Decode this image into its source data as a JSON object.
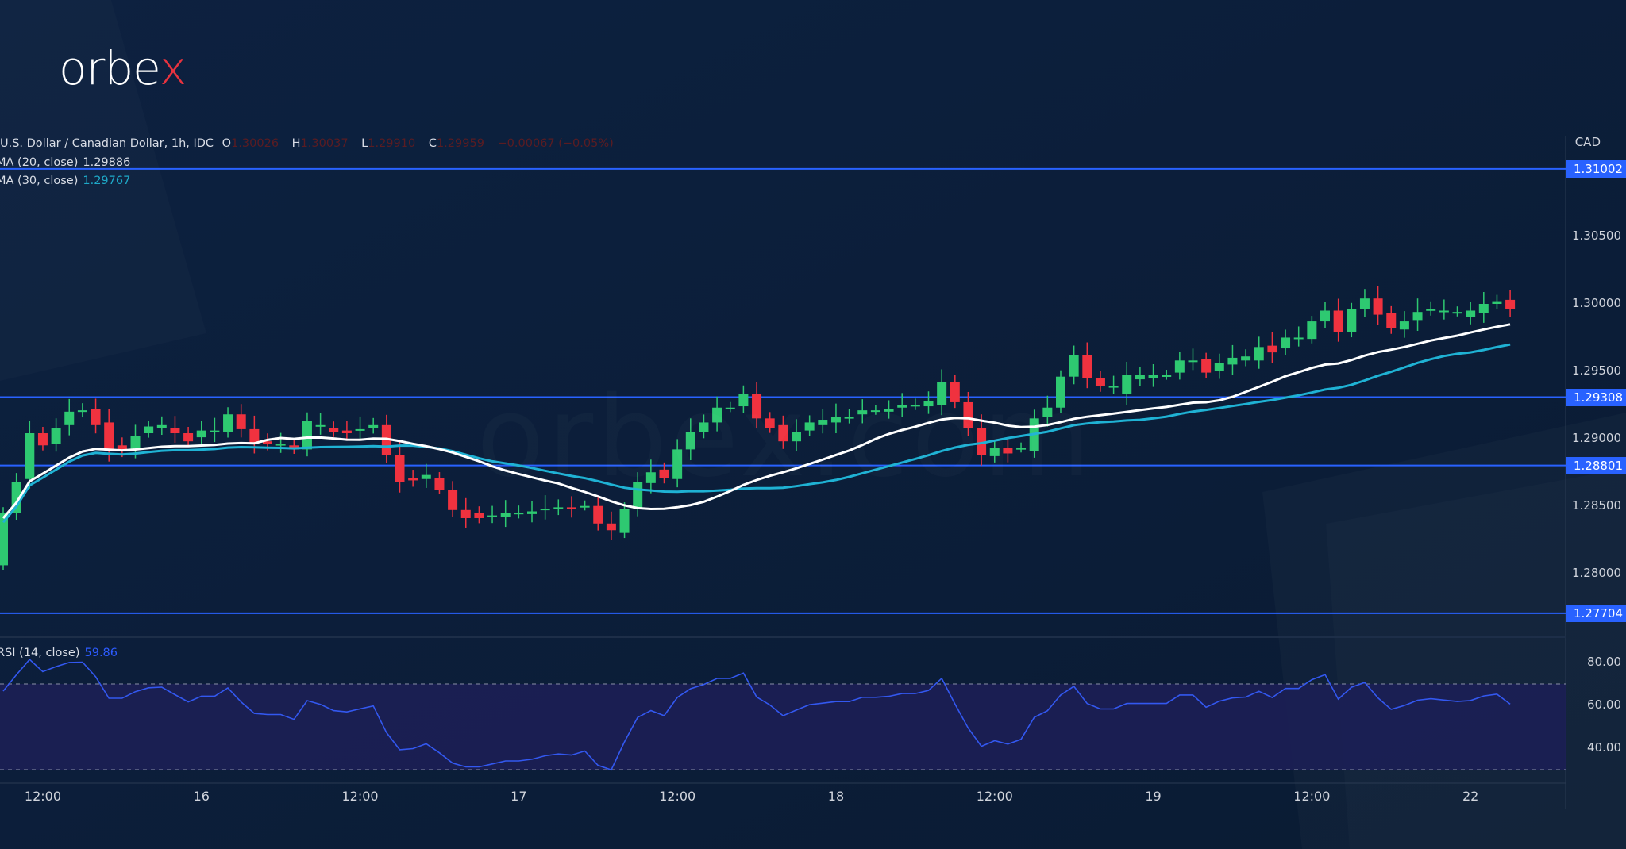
{
  "logo": "orbex",
  "watermark": "orbex.com",
  "legend": {
    "symbol": "U.S. Dollar / Canadian Dollar, 1h, IDC",
    "o_label": "O",
    "o": "1.30026",
    "h_label": "H",
    "h": "1.30037",
    "l_label": "L",
    "l": "1.29910",
    "c_label": "C",
    "c": "1.29959",
    "change": "−0.00067 (−0.05%)",
    "ma20_label": "MA (20, close)",
    "ma20": "1.29886",
    "ma30_label": "MA (30, close)",
    "ma30": "1.29767",
    "rsi_label": "RSI (14, close)",
    "rsi": "59.86"
  },
  "colors": {
    "up": "#2ec971",
    "down": "#f0323f",
    "ma20": "#ffffff",
    "ma30": "#1fb2d4",
    "level": "#2962ff",
    "rsi": "#3358f0"
  },
  "chart_data": {
    "type": "candlestick",
    "title": "U.S. Dollar / Canadian Dollar, 1h, IDC",
    "currency_label": "CAD",
    "y_ticks": [
      "1.30500",
      "1.30000",
      "1.29500",
      "1.29000",
      "1.28500",
      "1.28000"
    ],
    "ylim": [
      1.276,
      1.312
    ],
    "levels": [
      "1.31002",
      "1.29308",
      "1.28801",
      "1.27704"
    ],
    "x_ticks": [
      {
        "label": "12:00",
        "hour": 3
      },
      {
        "label": "16",
        "hour": 15
      },
      {
        "label": "12:00",
        "hour": 27
      },
      {
        "label": "17",
        "hour": 39
      },
      {
        "label": "12:00",
        "hour": 51
      },
      {
        "label": "18",
        "hour": 63
      },
      {
        "label": "12:00",
        "hour": 75
      },
      {
        "label": "19",
        "hour": 87
      },
      {
        "label": "12:00",
        "hour": 99
      },
      {
        "label": "22",
        "hour": 111
      }
    ],
    "candles_oc": [
      [
        1.2806,
        1.2845
      ],
      [
        1.2845,
        1.2868
      ],
      [
        1.287,
        1.2904
      ],
      [
        1.2904,
        1.2895
      ],
      [
        1.2896,
        1.2908
      ],
      [
        1.291,
        1.292
      ],
      [
        1.292,
        1.2921
      ],
      [
        1.2922,
        1.291
      ],
      [
        1.2912,
        1.2891
      ],
      [
        1.2895,
        1.2891
      ],
      [
        1.2892,
        1.2902
      ],
      [
        1.2904,
        1.2909
      ],
      [
        1.2908,
        1.291
      ],
      [
        1.2908,
        1.2904
      ],
      [
        1.2904,
        1.2898
      ],
      [
        1.2901,
        1.2906
      ],
      [
        1.2905,
        1.2906
      ],
      [
        1.2905,
        1.2918
      ],
      [
        1.2918,
        1.2907
      ],
      [
        1.2907,
        1.2897
      ],
      [
        1.2898,
        1.2896
      ],
      [
        1.2896,
        1.2896
      ],
      [
        1.2895,
        1.2892
      ],
      [
        1.2892,
        1.2913
      ],
      [
        1.291,
        1.291
      ],
      [
        1.2908,
        1.2905
      ],
      [
        1.2906,
        1.2904
      ],
      [
        1.2907,
        1.2907
      ],
      [
        1.2908,
        1.291
      ],
      [
        1.291,
        1.2888
      ],
      [
        1.2888,
        1.2868
      ],
      [
        1.2871,
        1.2869
      ],
      [
        1.287,
        1.2873
      ],
      [
        1.2871,
        1.2862
      ],
      [
        1.2862,
        1.2847
      ],
      [
        1.2847,
        1.2841
      ],
      [
        1.2845,
        1.2841
      ],
      [
        1.2843,
        1.2843
      ],
      [
        1.2842,
        1.2845
      ],
      [
        1.2845,
        1.2845
      ],
      [
        1.2844,
        1.2846
      ],
      [
        1.2848,
        1.2848
      ],
      [
        1.2848,
        1.2849
      ],
      [
        1.2849,
        1.2848
      ],
      [
        1.285,
        1.285
      ],
      [
        1.285,
        1.2837
      ],
      [
        1.2837,
        1.2832
      ],
      [
        1.283,
        1.2848
      ],
      [
        1.2848,
        1.2868
      ],
      [
        1.2867,
        1.2875
      ],
      [
        1.2877,
        1.2871
      ],
      [
        1.287,
        1.2892
      ],
      [
        1.2892,
        1.2905
      ],
      [
        1.2905,
        1.2912
      ],
      [
        1.2912,
        1.2923
      ],
      [
        1.2923,
        1.2923
      ],
      [
        1.2924,
        1.2933
      ],
      [
        1.2933,
        1.2915
      ],
      [
        1.2915,
        1.2908
      ],
      [
        1.291,
        1.2898
      ],
      [
        1.2898,
        1.2905
      ],
      [
        1.2906,
        1.2912
      ],
      [
        1.291,
        1.2914
      ],
      [
        1.2912,
        1.2916
      ],
      [
        1.2916,
        1.2916
      ],
      [
        1.2918,
        1.2921
      ],
      [
        1.2921,
        1.2921
      ],
      [
        1.292,
        1.2922
      ],
      [
        1.2923,
        1.2925
      ],
      [
        1.2925,
        1.2925
      ],
      [
        1.2924,
        1.2928
      ],
      [
        1.2925,
        1.2942
      ],
      [
        1.2942,
        1.2927
      ],
      [
        1.2927,
        1.2908
      ],
      [
        1.2908,
        1.2888
      ],
      [
        1.2887,
        1.2893
      ],
      [
        1.2893,
        1.2889
      ],
      [
        1.2893,
        1.2893
      ],
      [
        1.2891,
        1.2915
      ],
      [
        1.2916,
        1.2923
      ],
      [
        1.2923,
        1.2946
      ],
      [
        1.2946,
        1.2962
      ],
      [
        1.2962,
        1.2945
      ],
      [
        1.2945,
        1.2939
      ],
      [
        1.2939,
        1.2939
      ],
      [
        1.2933,
        1.2947
      ],
      [
        1.2944,
        1.2947
      ],
      [
        1.2945,
        1.2947
      ],
      [
        1.2947,
        1.2947
      ],
      [
        1.2949,
        1.2958
      ],
      [
        1.2958,
        1.2958
      ],
      [
        1.2959,
        1.2949
      ],
      [
        1.295,
        1.2956
      ],
      [
        1.2955,
        1.296
      ],
      [
        1.2958,
        1.2961
      ],
      [
        1.2958,
        1.2968
      ],
      [
        1.2969,
        1.2964
      ],
      [
        1.2967,
        1.2975
      ],
      [
        1.2975,
        1.2975
      ],
      [
        1.2974,
        1.2987
      ],
      [
        1.2987,
        1.2995
      ],
      [
        1.2995,
        1.2979
      ],
      [
        1.2979,
        1.2996
      ],
      [
        1.2996,
        1.3004
      ],
      [
        1.3004,
        1.2992
      ],
      [
        1.2993,
        1.2982
      ],
      [
        1.2981,
        1.2987
      ],
      [
        1.2988,
        1.2994
      ],
      [
        1.2996,
        1.2996
      ],
      [
        1.2995,
        1.2995
      ],
      [
        1.2994,
        1.2994
      ],
      [
        1.299,
        1.2995
      ],
      [
        1.2993,
        1.3
      ],
      [
        1.3,
        1.3002
      ],
      [
        1.3003,
        1.2996
      ]
    ],
    "rsi_ticks": [
      "80.00",
      "60.00",
      "40.00"
    ],
    "rsi_bands": [
      70,
      30
    ],
    "rsi_ylim": [
      22,
      100
    ]
  }
}
